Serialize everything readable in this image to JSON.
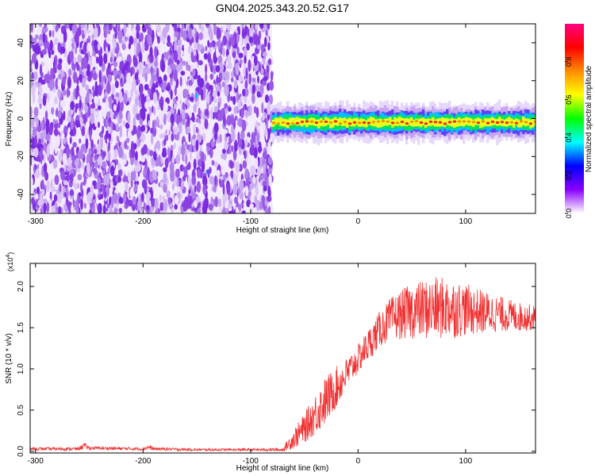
{
  "title": "GN04.2025.343.20.52.G17",
  "chart_data": [
    {
      "type": "heatmap",
      "xlabel": "Height of straight line (km)",
      "ylabel": "Frequency (Hz)",
      "xlim": [
        -305,
        165
      ],
      "ylim": [
        -50,
        50
      ],
      "x_ticks": [
        -300,
        -200,
        -100,
        0,
        100
      ],
      "x_tick_labels": [
        "-300",
        "-200",
        "-100",
        "0",
        "100"
      ],
      "y_ticks": [
        -40,
        -20,
        0,
        20,
        40
      ],
      "y_tick_labels": [
        "-40",
        "-20",
        "0",
        "20",
        "40"
      ],
      "noise_region_x": [
        -305,
        -80
      ],
      "signal_region_x": [
        -80,
        165
      ],
      "signal_frequency_center_hz": -2,
      "signal_frequency_halfwidth_hz": 4,
      "colorbar": {
        "label": "Normalized spectral amplitude",
        "range": [
          0,
          1
        ],
        "ticks": [
          0,
          0.2,
          0.4,
          0.6,
          0.8
        ],
        "tick_labels": [
          "0.0",
          "0.2",
          "0.4",
          "0.6",
          "0.8"
        ],
        "colors": [
          "#ffffff",
          "#8b00ff",
          "#0000ff",
          "#00ffff",
          "#00ff00",
          "#ffff00",
          "#ff8c00",
          "#ff0000",
          "#ff0080"
        ]
      }
    },
    {
      "type": "line",
      "xlabel": "Height of straight line (km)",
      "ylabel": "SNR (10 * v/v)",
      "scale_label": "(x10^4)",
      "scale_base": "(x10",
      "scale_exp": "4",
      "scale_close": ")",
      "xlim": [
        -305,
        165
      ],
      "ylim": [
        -0.02,
        2.28
      ],
      "x_ticks": [
        -300,
        -200,
        -100,
        0,
        100
      ],
      "x_tick_labels": [
        "-300",
        "-200",
        "-100",
        "0",
        "100"
      ],
      "y_ticks": [
        0.0,
        0.5,
        1.0,
        1.5,
        2.0
      ],
      "y_tick_labels": [
        "0.0",
        "0.5",
        "1.0",
        "1.5",
        "2.0"
      ],
      "series": [
        {
          "name": "SNR",
          "color": "#f03030",
          "x": [
            -305,
            -260,
            -255,
            -250,
            -200,
            -195,
            -190,
            -150,
            -100,
            -70,
            -60,
            -50,
            -40,
            -30,
            -20,
            -10,
            0,
            10,
            20,
            30,
            40,
            50,
            60,
            70,
            80,
            90,
            100,
            110,
            120,
            130,
            140,
            150,
            165
          ],
          "y": [
            0.03,
            0.03,
            0.07,
            0.04,
            0.03,
            0.05,
            0.03,
            0.02,
            0.02,
            0.02,
            0.15,
            0.28,
            0.45,
            0.62,
            0.78,
            0.95,
            1.12,
            1.3,
            1.48,
            1.6,
            1.66,
            1.7,
            1.72,
            1.73,
            1.74,
            1.73,
            1.72,
            1.7,
            1.68,
            1.67,
            1.65,
            1.63,
            1.62
          ],
          "spread": [
            0.02,
            0.02,
            0.04,
            0.02,
            0.02,
            0.03,
            0.02,
            0.015,
            0.015,
            0.02,
            0.12,
            0.18,
            0.25,
            0.3,
            0.25,
            0.2,
            0.18,
            0.2,
            0.22,
            0.26,
            0.3,
            0.34,
            0.36,
            0.38,
            0.38,
            0.36,
            0.32,
            0.28,
            0.26,
            0.22,
            0.2,
            0.18,
            0.15
          ]
        }
      ]
    }
  ]
}
